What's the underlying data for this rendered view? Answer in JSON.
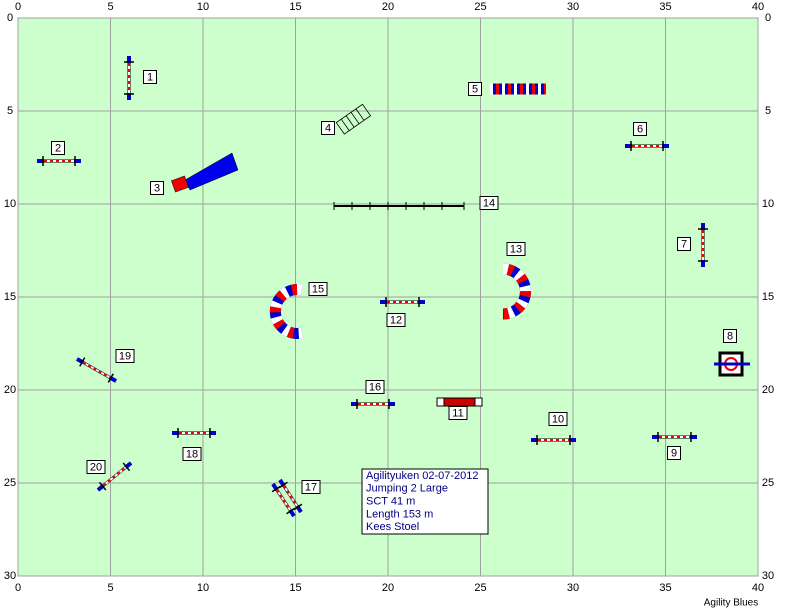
{
  "axes": {
    "xlim": [
      0,
      40
    ],
    "ylim": [
      0,
      30
    ],
    "xticks": [
      0,
      5,
      10,
      15,
      20,
      25,
      30,
      35,
      40
    ],
    "yticks": [
      0,
      5,
      10,
      15,
      20,
      25,
      30
    ]
  },
  "obstacles": [
    "1",
    "2",
    "3",
    "4",
    "5",
    "6",
    "7",
    "8",
    "9",
    "10",
    "11",
    "12",
    "13",
    "14",
    "15",
    "16",
    "17",
    "18",
    "19",
    "20"
  ],
  "info": [
    "Agilityuken 02-07-2012",
    "Jumping 2 Large",
    "SCT 41 m",
    "Length 153 m",
    "Kees Stoel"
  ],
  "footer": "Agility Blues"
}
